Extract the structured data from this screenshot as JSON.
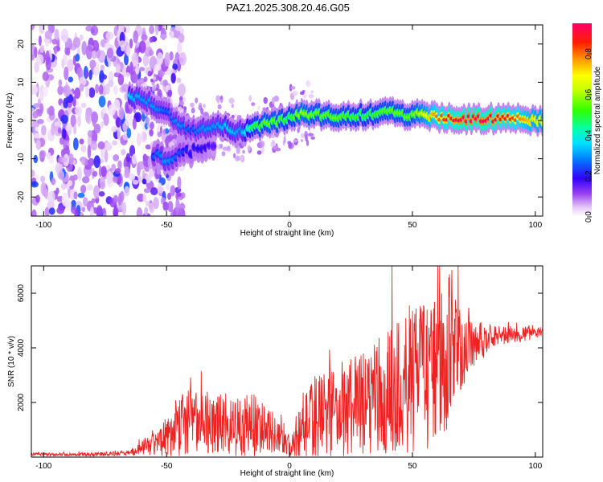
{
  "page_title": "PAZ1.2025.308.20.46.G05",
  "chart_data": [
    {
      "type": "heatmap",
      "title": "PAZ1.2025.308.20.46.G05",
      "xlabel": "Height of straight line (km)",
      "ylabel": "Frequency (Hz)",
      "xlim": [
        -105,
        103
      ],
      "ylim": [
        -25,
        25
      ],
      "xticks": [
        -100,
        -50,
        0,
        50,
        100
      ],
      "yticks": [
        -20,
        -10,
        0,
        10,
        20
      ],
      "colorbar": {
        "label": "Normalized spectral amplitude",
        "range": [
          0,
          0.95
        ],
        "ticks": [
          0.0,
          0.2,
          0.4,
          0.6,
          0.8
        ]
      },
      "ridge": {
        "x": [
          -65,
          -60,
          -55,
          -50,
          -45,
          -40,
          -35,
          -30,
          -25,
          -20,
          -15,
          -10,
          -5,
          0,
          5,
          10,
          20,
          30,
          40,
          50,
          60,
          70,
          80,
          90,
          100
        ],
        "y": [
          6,
          5.5,
          4,
          2,
          -1,
          -3,
          -2,
          -1,
          -2,
          -3,
          -1.5,
          -1,
          -0.5,
          0.5,
          2,
          1.5,
          1,
          1.5,
          2,
          1.5,
          1,
          0.5,
          0.5,
          0.5,
          0
        ],
        "amplitude": [
          0.35,
          0.3,
          0.3,
          0.25,
          0.3,
          0.25,
          0.3,
          0.3,
          0.35,
          0.3,
          0.5,
          0.55,
          0.55,
          0.5,
          0.6,
          0.55,
          0.55,
          0.5,
          0.55,
          0.55,
          0.8,
          0.92,
          0.92,
          0.85,
          0.7
        ]
      },
      "secondary_branch": {
        "x": [
          -55,
          -50,
          -45,
          -40,
          -35,
          -30
        ],
        "y": [
          -9,
          -10,
          -9,
          -8,
          -7,
          -6
        ],
        "amplitude": [
          0.25,
          0.3,
          0.25,
          0.2,
          0.2,
          0.15
        ]
      }
    },
    {
      "type": "line",
      "xlabel": "Height of straight line (km)",
      "ylabel": "SNR (10 * v/v)",
      "xlim": [
        -105,
        103
      ],
      "ylim": [
        0,
        7000
      ],
      "xticks": [
        -100,
        -50,
        0,
        50,
        100
      ],
      "yticks": [
        2000,
        4000,
        6000
      ],
      "series": [
        {
          "name": "SNR",
          "color": "#ee2222",
          "envelope": {
            "x": [
              -105,
              -80,
              -65,
              -60,
              -55,
              -50,
              -45,
              -40,
              -35,
              -30,
              -25,
              -20,
              -15,
              -10,
              -5,
              0,
              5,
              10,
              15,
              20,
              25,
              30,
              35,
              40,
              45,
              50,
              55,
              60,
              63,
              65,
              70,
              75,
              80,
              85,
              90,
              95,
              100,
              103
            ],
            "mean": [
              100,
              100,
              150,
              350,
              550,
              750,
              1200,
              1300,
              1300,
              1250,
              1100,
              1100,
              1150,
              1000,
              750,
              400,
              1100,
              1500,
              1600,
              1700,
              1800,
              2000,
              2100,
              2400,
              2600,
              2800,
              3000,
              3100,
              3200,
              3800,
              4000,
              4200,
              4300,
              4400,
              4500,
              4500,
              4600,
              4600
            ],
            "spread": [
              60,
              70,
              90,
              250,
              500,
              800,
              1200,
              1200,
              1200,
              1200,
              1000,
              1100,
              1200,
              900,
              600,
              400,
              1200,
              1600,
              1700,
              1800,
              1900,
              2000,
              2100,
              2400,
              2500,
              2600,
              2700,
              2800,
              3000,
              2400,
              1500,
              1000,
              600,
              400,
              300,
              300,
              250,
              250
            ]
          }
        }
      ]
    }
  ]
}
